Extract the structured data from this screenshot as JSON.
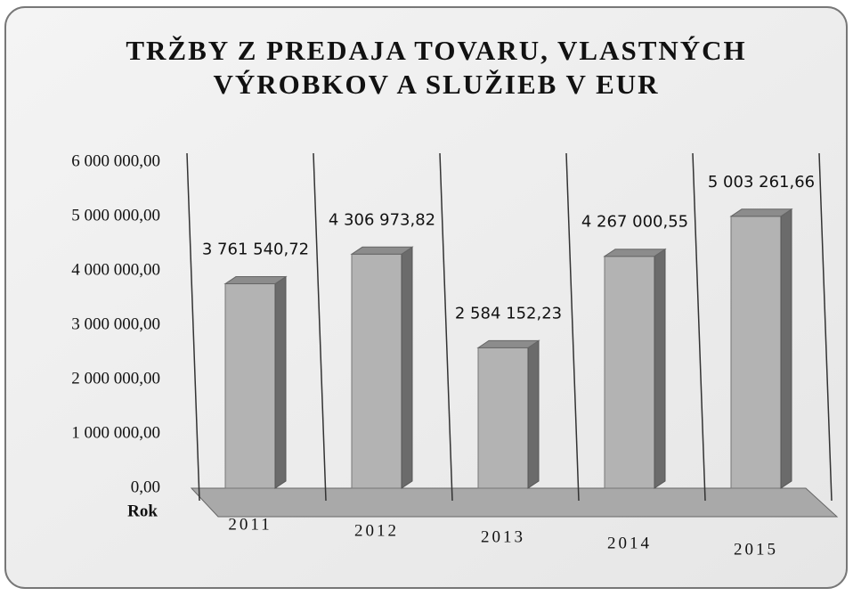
{
  "chart_data": {
    "type": "bar3d",
    "title": "TRŽBY Z PREDAJA TOVARU, VLASTNÝCH VÝROBKOV A SLUŽIEB V EUR",
    "x_label": "Rok",
    "categories": [
      "2011",
      "2012",
      "2013",
      "2014",
      "2015"
    ],
    "values": [
      3761540.72,
      4306973.82,
      2584152.23,
      4267000.55,
      5003261.66
    ],
    "value_labels": [
      "3 761 540,72",
      "4 306 973,82",
      "2 584 152,23",
      "4 267 000,55",
      "5 003 261,66"
    ],
    "color": "#b3b3b3",
    "ylim": [
      0,
      6000000
    ],
    "yticks": [
      {
        "value": 0,
        "label": "0,00"
      },
      {
        "value": 1000000,
        "label": "1 000 000,00"
      },
      {
        "value": 2000000,
        "label": "2 000 000,00"
      },
      {
        "value": 3000000,
        "label": "3 000 000,00"
      },
      {
        "value": 4000000,
        "label": "4 000 000,00"
      },
      {
        "value": 5000000,
        "label": "5 000 000,00"
      },
      {
        "value": 6000000,
        "label": "6 000 000,00"
      }
    ],
    "grid": false
  }
}
